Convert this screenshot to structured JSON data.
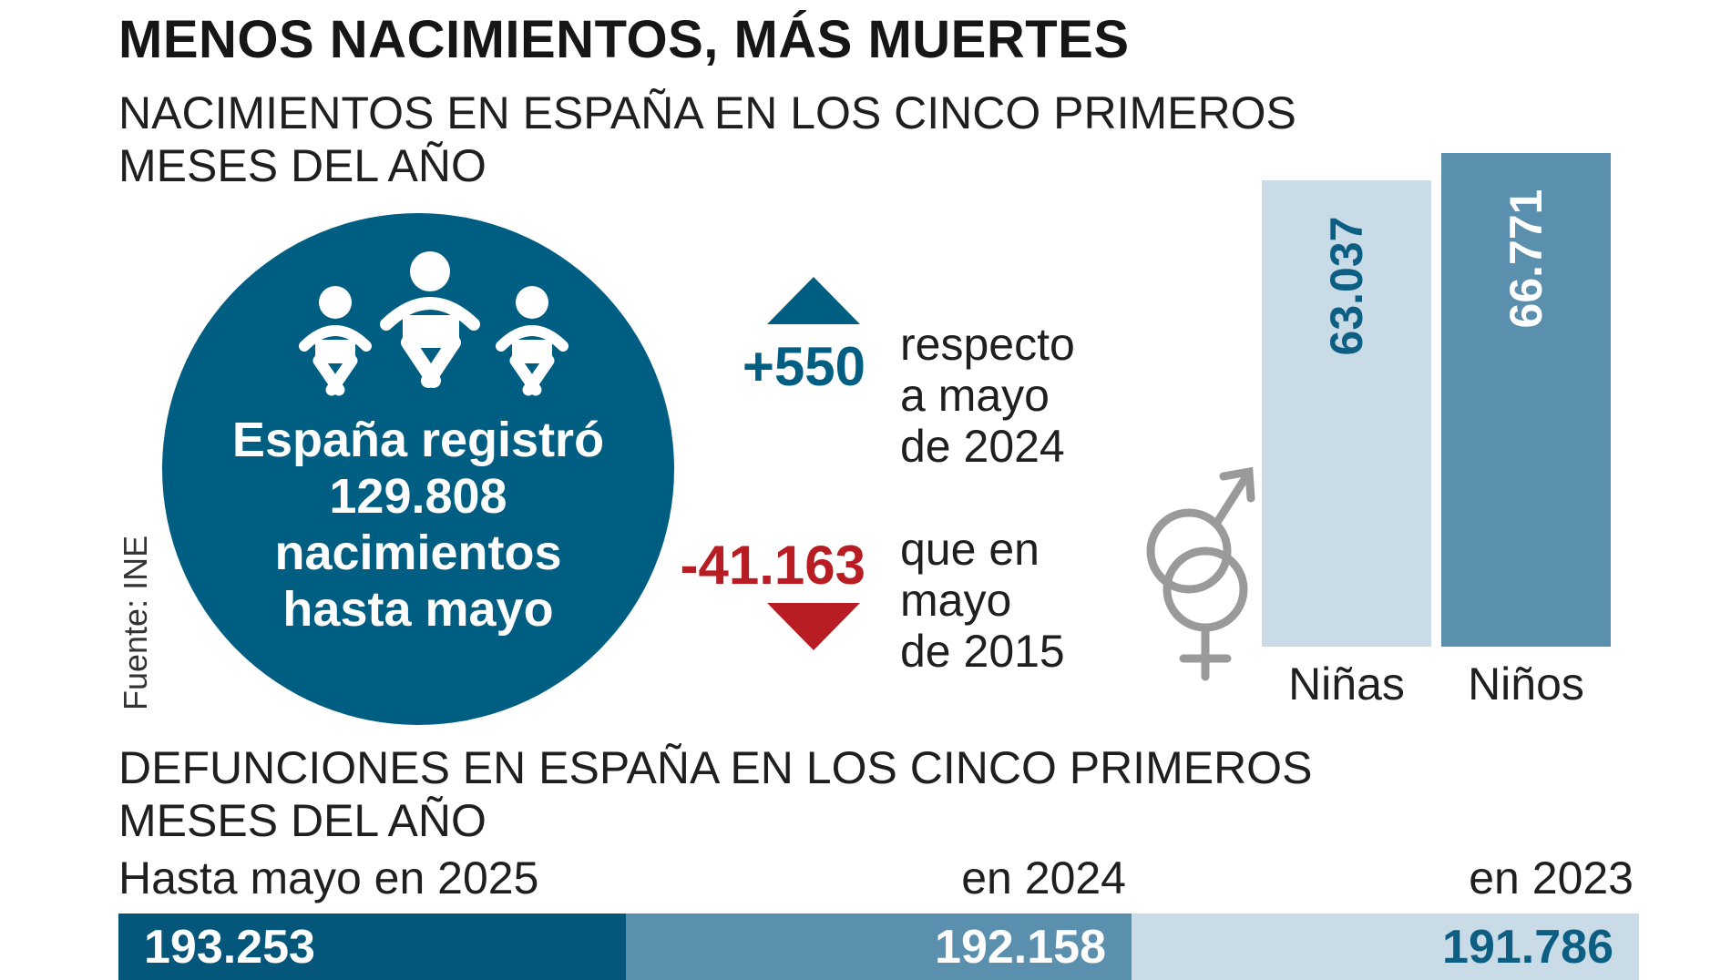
{
  "title": "MENOS NACIMIENTOS, MÁS MUERTES",
  "births_section": {
    "heading_line1": "NACIMIENTOS EN ESPAÑA EN LOS CINCO PRIMEROS",
    "heading_line2": "MESES DEL AÑO",
    "circle_line1": "España registró",
    "circle_line2": "129.808",
    "circle_line3": "nacimientos",
    "circle_line4": "hasta mayo",
    "up_value": "+550",
    "up_text_line1": "respecto",
    "up_text_line2": "a mayo",
    "up_text_line3": "de 2024",
    "down_value": "-41.163",
    "down_text_line1": "que en",
    "down_text_line2": "mayo",
    "down_text_line3": "de 2015",
    "icons": [
      "baby-icon",
      "baby-icon",
      "baby-icon",
      "gender-symbol-icon",
      "triangle-up-icon",
      "triangle-down-icon"
    ]
  },
  "source": "Fuente: INE",
  "chart_data": [
    {
      "type": "bar",
      "categories": [
        "Niñas",
        "Niños"
      ],
      "values": [
        63037,
        66771
      ],
      "value_labels": [
        "63.037",
        "66.771"
      ],
      "colors": [
        "#c9dbe7",
        "#5b8fae"
      ],
      "label_colors": [
        "#0d5e83",
        "#ffffff"
      ]
    },
    {
      "type": "bar",
      "title_line1": "DEFUNCIONES EN ESPAÑA EN LOS CINCO PRIMEROS",
      "title_line2": "MESES DEL AÑO",
      "categories": [
        "Hasta mayo en 2025",
        "en 2024",
        "en 2023"
      ],
      "values": [
        193253,
        192158,
        191786
      ],
      "value_labels": [
        "193.253",
        "192.158",
        "191.786"
      ],
      "colors": [
        "#04577b",
        "#5b8fae",
        "#c9dbe7"
      ],
      "label_colors": [
        "#ffffff",
        "#ffffff",
        "#0d5e83"
      ]
    }
  ],
  "colors": {
    "primary": "#005e82",
    "red": "#b81d24",
    "gray_icon": "#9a9a9a"
  }
}
